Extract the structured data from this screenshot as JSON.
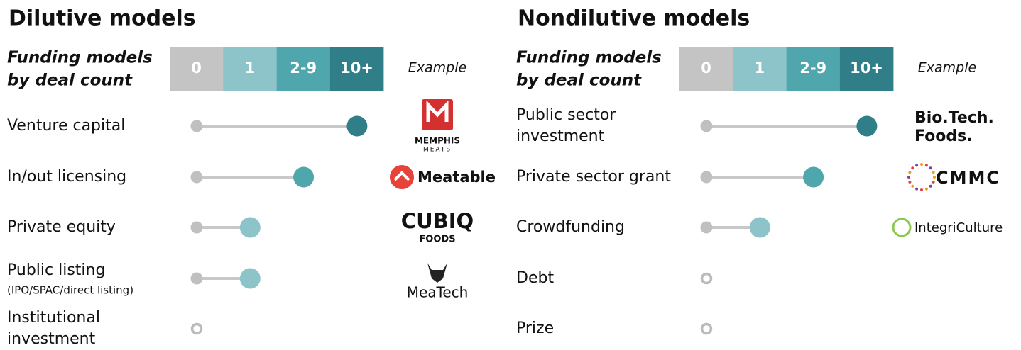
{
  "panels": [
    {
      "title": "Dilutive models",
      "header": {
        "label": [
          "Funding models",
          "by deal count"
        ],
        "scale": [
          "0",
          "1",
          "2-9",
          "10+"
        ],
        "example": "Example"
      },
      "rows": [
        {
          "label": [
            "Venture capital"
          ],
          "level": "10+",
          "example": [
            "MEMPHIS",
            "MEATS"
          ]
        },
        {
          "label": [
            "In/out licensing"
          ],
          "level": "2-9",
          "example": [
            "Meatable"
          ]
        },
        {
          "label": [
            "Private equity"
          ],
          "level": "1",
          "example": [
            "CUBIQ",
            "FOODS"
          ]
        },
        {
          "label": [
            "Public listing"
          ],
          "sublabel": "(IPO/SPAC/direct listing)",
          "level": "1",
          "example": [
            "MeaTech"
          ]
        },
        {
          "label": [
            "Institutional",
            "investment"
          ],
          "level": "0"
        }
      ]
    },
    {
      "title": "Nondilutive models",
      "header": {
        "label": [
          "Funding models",
          "by deal count"
        ],
        "scale": [
          "0",
          "1",
          "2-9",
          "10+"
        ],
        "example": "Example"
      },
      "rows": [
        {
          "label": [
            "Public sector",
            "investment"
          ],
          "level": "10+",
          "example": [
            "Bio.Tech.",
            "Foods."
          ]
        },
        {
          "label": [
            "Private sector grant"
          ],
          "level": "2-9",
          "example": [
            "CMMC"
          ]
        },
        {
          "label": [
            "Crowdfunding"
          ],
          "level": "1",
          "example": [
            "IntegriCulture"
          ]
        },
        {
          "label": [
            "Debt"
          ],
          "level": "0"
        },
        {
          "label": [
            "Prize"
          ],
          "level": "0"
        }
      ]
    }
  ]
}
